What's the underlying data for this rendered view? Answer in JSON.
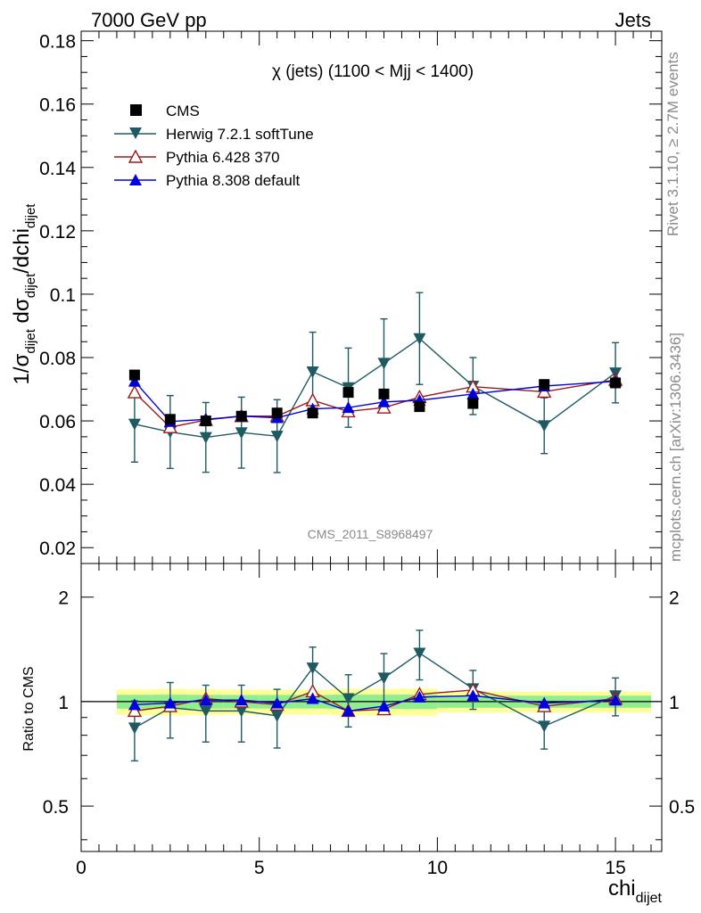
{
  "header": {
    "left": "7000 GeV pp",
    "right": "Jets"
  },
  "side_labels": {
    "rivet": "Rivet 3.1.10, ≥ 2.7M events",
    "mcplots": "mcplots.cern.ch [arXiv:1306.3436]"
  },
  "colors": {
    "cms": "#000000",
    "herwig": "#1f5a63",
    "pythia6": "#9b1b1b",
    "pythia8": "#0000dd",
    "band_inner": "#90ee90",
    "band_outer": "#ffff99"
  },
  "chart_data": [
    {
      "type": "scatter",
      "title": "χ (jets) (1100 < Mjj < 1400)",
      "watermark": "CMS_2011_S8968497",
      "ylabel": "1/σ_dijet dσ_dijet/dchi_dijet",
      "ylim": [
        0.015,
        0.183
      ],
      "xlim": [
        0,
        16.3
      ],
      "yticks": [
        "0.02",
        "0.04",
        "0.06",
        "0.08",
        "0.1",
        "0.12",
        "0.14",
        "0.16",
        "0.18"
      ],
      "legend_position": "top-left",
      "series": [
        {
          "name": "CMS",
          "marker": "square",
          "x": [
            1.5,
            2.5,
            3.5,
            4.5,
            5.5,
            6.5,
            7.5,
            8.5,
            9.5,
            11,
            13,
            15
          ],
          "y": [
            0.0745,
            0.0605,
            0.06,
            0.0615,
            0.0625,
            0.0625,
            0.069,
            0.0685,
            0.0645,
            0.0655,
            0.0715,
            0.072
          ]
        },
        {
          "name": "Herwig 7.2.1 softTune",
          "marker": "triangle-down",
          "x": [
            1.5,
            2.5,
            3.5,
            4.5,
            5.5,
            6.5,
            7.5,
            8.5,
            9.5,
            11,
            13,
            15
          ],
          "y": [
            0.059,
            0.0565,
            0.0548,
            0.0563,
            0.0552,
            0.0755,
            0.0705,
            0.0782,
            0.086,
            0.071,
            0.0585,
            0.0752
          ],
          "err": [
            0.012,
            0.0115,
            0.011,
            0.0112,
            0.0115,
            0.0125,
            0.0125,
            0.014,
            0.0145,
            0.009,
            0.0088,
            0.0095
          ]
        },
        {
          "name": "Pythia 6.428 370",
          "marker": "triangle-up-open",
          "x": [
            1.5,
            2.5,
            3.5,
            4.5,
            5.5,
            6.5,
            7.5,
            8.5,
            9.5,
            11,
            13,
            15
          ],
          "y": [
            0.069,
            0.058,
            0.0603,
            0.0615,
            0.0615,
            0.0665,
            0.063,
            0.0642,
            0.0675,
            0.0708,
            0.0692,
            0.073
          ]
        },
        {
          "name": "Pythia 8.308 default",
          "marker": "triangle-up",
          "x": [
            1.5,
            2.5,
            3.5,
            4.5,
            5.5,
            6.5,
            7.5,
            8.5,
            9.5,
            11,
            13,
            15
          ],
          "y": [
            0.0725,
            0.0598,
            0.0605,
            0.0615,
            0.061,
            0.0638,
            0.0642,
            0.066,
            0.0665,
            0.0685,
            0.071,
            0.0725
          ]
        }
      ]
    },
    {
      "type": "scatter",
      "ylabel": "Ratio to CMS",
      "xlabel": "chi_dijet",
      "xlim": [
        0,
        16.3
      ],
      "ylim": [
        0.37,
        2.5
      ],
      "log_y": true,
      "yticks": [
        "0.5",
        "1",
        "2"
      ],
      "xticks": [
        "0",
        "5",
        "10",
        "15"
      ],
      "bands": {
        "edges": [
          1,
          2,
          3,
          4,
          5,
          6,
          7,
          8,
          9,
          10,
          12,
          14,
          16
        ],
        "inner": [
          0.046,
          0.047,
          0.046,
          0.045,
          0.045,
          0.045,
          0.047,
          0.047,
          0.048,
          0.04,
          0.04,
          0.04
        ],
        "outer": [
          0.085,
          0.088,
          0.085,
          0.083,
          0.082,
          0.082,
          0.088,
          0.088,
          0.09,
          0.07,
          0.07,
          0.07
        ]
      },
      "series": [
        {
          "name": "Herwig 7.2.1 softTune",
          "marker": "triangle-down",
          "x": [
            1.5,
            2.5,
            3.5,
            4.5,
            5.5,
            6.5,
            7.5,
            8.5,
            9.5,
            11,
            13,
            15
          ],
          "y": [
            0.84,
            0.96,
            0.94,
            0.94,
            0.91,
            1.25,
            1.02,
            1.17,
            1.38,
            1.09,
            0.85,
            1.04
          ],
          "err": [
            0.165,
            0.175,
            0.175,
            0.175,
            0.175,
            0.185,
            0.175,
            0.205,
            0.225,
            0.14,
            0.12,
            0.13
          ]
        },
        {
          "name": "Pythia 6.428 370",
          "marker": "triangle-up-open",
          "x": [
            1.5,
            2.5,
            3.5,
            4.5,
            5.5,
            6.5,
            7.5,
            8.5,
            9.5,
            11,
            13,
            15
          ],
          "y": [
            0.94,
            0.97,
            1.02,
            1.0,
            0.98,
            1.07,
            0.94,
            0.95,
            1.05,
            1.08,
            0.97,
            1.02
          ]
        },
        {
          "name": "Pythia 8.308 default",
          "marker": "triangle-up",
          "x": [
            1.5,
            2.5,
            3.5,
            4.5,
            5.5,
            6.5,
            7.5,
            8.5,
            9.5,
            11,
            13,
            15
          ],
          "y": [
            0.98,
            0.99,
            1.01,
            1.01,
            0.99,
            1.02,
            0.94,
            0.97,
            1.03,
            1.04,
            0.99,
            1.01
          ]
        }
      ]
    }
  ]
}
